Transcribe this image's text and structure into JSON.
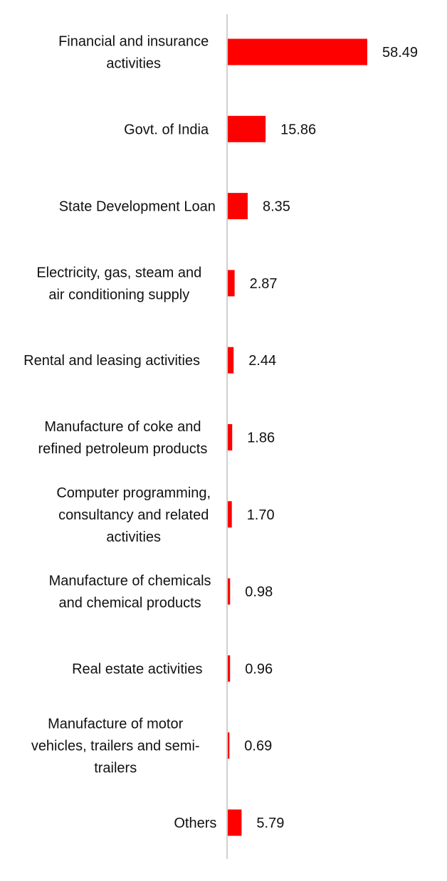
{
  "chart_data": {
    "type": "bar",
    "orientation": "horizontal",
    "categories": [
      "Financial and insurance activities",
      "Govt. of India",
      "State Development Loan",
      "Electricity, gas, steam and air conditioning supply",
      "Rental and leasing activities",
      "Manufacture of coke and refined petroleum products",
      "Computer programming, consultancy and related activities",
      "Manufacture of chemicals and chemical products",
      "Real estate activities",
      "Manufacture of motor vehicles, trailers and semi-trailers",
      "Others"
    ],
    "category_lines": [
      [
        "Financial and insurance",
        "activities"
      ],
      [
        "Govt. of India"
      ],
      [
        "State Development Loan"
      ],
      [
        "Electricity, gas, steam and",
        "air conditioning supply"
      ],
      [
        "Rental and leasing activities"
      ],
      [
        "Manufacture of coke and",
        "refined petroleum products"
      ],
      [
        "Computer programming,",
        "consultancy and related",
        "activities"
      ],
      [
        "Manufacture of chemicals",
        "and chemical products"
      ],
      [
        "Real estate activities"
      ],
      [
        "Manufacture of motor",
        "vehicles, trailers and semi-",
        "trailers"
      ],
      [
        "Others"
      ]
    ],
    "values": [
      58.49,
      15.86,
      8.35,
      2.87,
      2.44,
      1.86,
      1.7,
      0.98,
      0.96,
      0.69,
      5.79
    ],
    "value_labels": [
      "58.49",
      "15.86",
      "8.35",
      "2.87",
      "2.44",
      "1.86",
      "1.70",
      "0.98",
      "0.96",
      "0.69",
      "5.79"
    ],
    "title": "",
    "xlabel": "",
    "ylabel": "",
    "xlim": [
      0,
      60
    ],
    "grid": false,
    "legend": "none",
    "bar_color": "#ff0000",
    "axis_color": "#d0d0d0"
  }
}
